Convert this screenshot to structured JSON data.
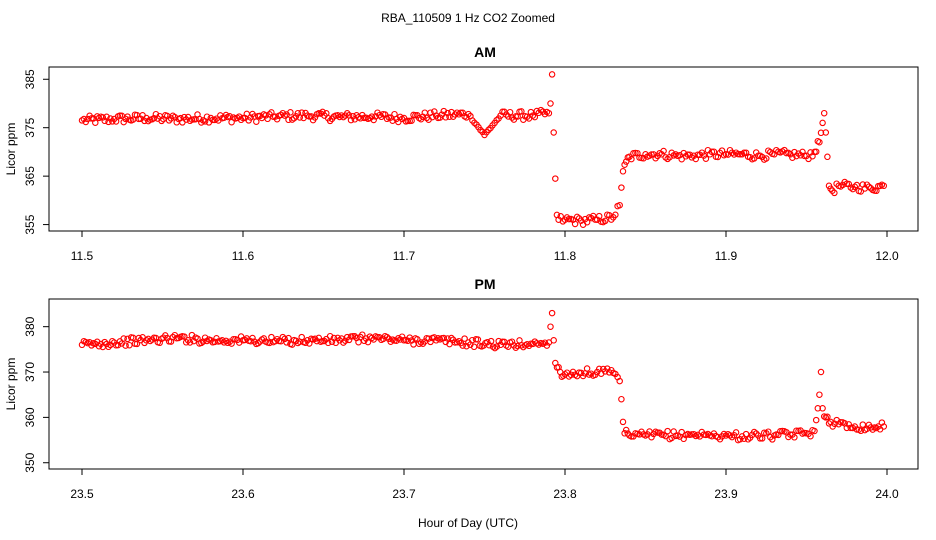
{
  "figure": {
    "title": "RBA_110509  1 Hz CO2 Zoomed",
    "xlabel": "Hour of Day (UTC)"
  },
  "chart_data": [
    {
      "type": "scatter",
      "title": "AM",
      "xlabel": "",
      "ylabel": "Licor ppm",
      "xlim": [
        11.5,
        12.0
      ],
      "ylim": [
        354.5,
        386.5
      ],
      "xticks": [
        "11.5",
        "11.6",
        "11.7",
        "11.8",
        "11.9",
        "12.0"
      ],
      "yticks": [
        "355",
        "365",
        "375",
        "385"
      ],
      "marker_color": "#ff0000",
      "grid": false,
      "legend": "none",
      "x": [
        11.5,
        11.52,
        11.54,
        11.56,
        11.58,
        11.6,
        11.62,
        11.64,
        11.66,
        11.68,
        11.7,
        11.72,
        11.74,
        11.75,
        11.76,
        11.78,
        11.79,
        11.791,
        11.792,
        11.793,
        11.794,
        11.795,
        11.796,
        11.8,
        11.81,
        11.82,
        11.83,
        11.834,
        11.836,
        11.838,
        11.84,
        11.85,
        11.86,
        11.87,
        11.88,
        11.89,
        11.9,
        11.91,
        11.92,
        11.93,
        11.94,
        11.95,
        11.955,
        11.958,
        11.96,
        11.961,
        11.962,
        11.963,
        11.964,
        11.966,
        11.97,
        11.98,
        11.99,
        11.998
      ],
      "y": [
        376.5,
        376.8,
        377.0,
        376.8,
        377.0,
        377.0,
        377.3,
        377.5,
        377.2,
        377.3,
        377.0,
        377.5,
        377.8,
        373.5,
        377.5,
        377.5,
        378.0,
        380.0,
        386.0,
        374.0,
        364.5,
        357.0,
        356.0,
        356.0,
        355.8,
        356.0,
        356.5,
        359.0,
        366.0,
        368.0,
        369.0,
        369.5,
        369.5,
        369.2,
        369.2,
        369.5,
        369.5,
        369.5,
        369.2,
        369.5,
        369.5,
        369.2,
        370.0,
        372.0,
        376.0,
        378.0,
        374.0,
        369.0,
        363.0,
        362.0,
        363.0,
        362.8,
        362.5,
        363.0
      ]
    },
    {
      "type": "scatter",
      "title": "PM",
      "xlabel": "",
      "ylabel": "Licor ppm",
      "xlim": [
        23.5,
        24.0
      ],
      "ylim": [
        349.5,
        385.0
      ],
      "xticks": [
        "23.5",
        "23.6",
        "23.7",
        "23.8",
        "23.9",
        "24.0"
      ],
      "yticks": [
        "350",
        "360",
        "370",
        "380"
      ],
      "marker_color": "#ff0000",
      "grid": false,
      "legend": "none",
      "x": [
        23.5,
        23.52,
        23.54,
        23.56,
        23.58,
        23.6,
        23.62,
        23.64,
        23.66,
        23.68,
        23.7,
        23.72,
        23.74,
        23.76,
        23.78,
        23.79,
        23.791,
        23.792,
        23.793,
        23.794,
        23.795,
        23.797,
        23.8,
        23.81,
        23.82,
        23.83,
        23.834,
        23.835,
        23.836,
        23.837,
        23.84,
        23.85,
        23.86,
        23.87,
        23.88,
        23.89,
        23.9,
        23.91,
        23.92,
        23.93,
        23.94,
        23.95,
        23.955,
        23.957,
        23.958,
        23.959,
        23.96,
        23.962,
        23.965,
        23.97,
        23.98,
        23.99,
        23.998
      ],
      "y": [
        376.0,
        376.5,
        377.0,
        377.5,
        377.0,
        377.0,
        376.8,
        377.0,
        377.0,
        377.5,
        377.0,
        377.0,
        376.5,
        376.0,
        376.2,
        376.5,
        380.0,
        383.0,
        377.0,
        372.0,
        371.0,
        370.0,
        369.5,
        369.8,
        370.0,
        369.8,
        368.0,
        364.0,
        359.0,
        356.5,
        356.0,
        356.0,
        356.2,
        356.0,
        356.3,
        356.0,
        356.0,
        355.8,
        356.0,
        356.0,
        356.2,
        356.5,
        357.0,
        362.0,
        365.0,
        370.0,
        362.0,
        360.0,
        359.0,
        358.5,
        358.0,
        357.8,
        358.0
      ]
    }
  ]
}
